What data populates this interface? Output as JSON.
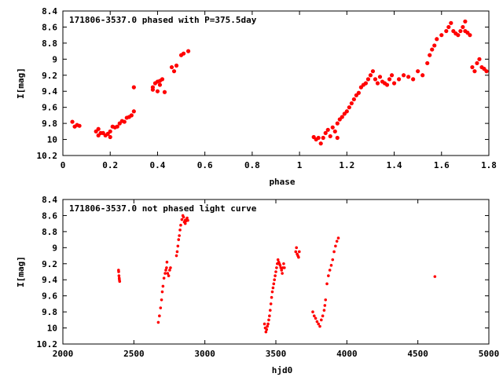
{
  "chart_data": [
    {
      "type": "scatter",
      "title": "171806-3537.0 phased with P=375.5day",
      "xlabel": "phase",
      "ylabel": "I[mag]",
      "xlim": [
        0,
        1.8
      ],
      "ylim": [
        10.2,
        8.4
      ],
      "y_inverted": true,
      "grid": false,
      "x_ticks": [
        "0",
        "0.2",
        "0.4",
        "0.6",
        "0.8",
        "1",
        "1.2",
        "1.4",
        "1.6",
        "1.8"
      ],
      "y_ticks": [
        "8.4",
        "8.6",
        "8.8",
        "9",
        "9.2",
        "9.4",
        "9.6",
        "9.8",
        "10",
        "10.2"
      ],
      "marker_color": "#ff0000",
      "series": [
        {
          "x": [
            0.04,
            0.05,
            0.06,
            0.07,
            0.14,
            0.15,
            0.15,
            0.16,
            0.17,
            0.18,
            0.19,
            0.2,
            0.2,
            0.21,
            0.22,
            0.23,
            0.24,
            0.25,
            0.26,
            0.27,
            0.28,
            0.29,
            0.3,
            0.3,
            0.38,
            0.38,
            0.39,
            0.4,
            0.4,
            0.41,
            0.41,
            0.42,
            0.43,
            0.46,
            0.47,
            0.48,
            0.5,
            0.51,
            0.53,
            1.06,
            1.07,
            1.08,
            1.09,
            1.1,
            1.11,
            1.12,
            1.13,
            1.14,
            1.15,
            1.16,
            1.16,
            1.17,
            1.18,
            1.19,
            1.2,
            1.21,
            1.22,
            1.23,
            1.24,
            1.25,
            1.26,
            1.27,
            1.28,
            1.29,
            1.3,
            1.31,
            1.32,
            1.33,
            1.34,
            1.35,
            1.36,
            1.37,
            1.38,
            1.39,
            1.4,
            1.42,
            1.44,
            1.46,
            1.48,
            1.5,
            1.52,
            1.54,
            1.55,
            1.56,
            1.57,
            1.58,
            1.6,
            1.62,
            1.63,
            1.64,
            1.65,
            1.66,
            1.67,
            1.68,
            1.69,
            1.7,
            1.7,
            1.71,
            1.72,
            1.73,
            1.74,
            1.75,
            1.76,
            1.77,
            1.78,
            1.79
          ],
          "y": [
            9.78,
            9.84,
            9.82,
            9.83,
            9.9,
            9.87,
            9.95,
            9.92,
            9.92,
            9.95,
            9.93,
            9.97,
            9.9,
            9.84,
            9.85,
            9.84,
            9.8,
            9.77,
            9.78,
            9.73,
            9.72,
            9.7,
            9.65,
            9.35,
            9.38,
            9.35,
            9.3,
            9.28,
            9.4,
            9.27,
            9.32,
            9.25,
            9.41,
            9.1,
            9.15,
            9.08,
            8.95,
            8.93,
            8.9,
            9.97,
            10.0,
            9.98,
            10.05,
            9.98,
            9.92,
            9.88,
            9.96,
            9.85,
            9.9,
            9.8,
            9.98,
            9.75,
            9.72,
            9.68,
            9.65,
            9.6,
            9.55,
            9.5,
            9.45,
            9.42,
            9.35,
            9.32,
            9.3,
            9.25,
            9.2,
            9.15,
            9.25,
            9.3,
            9.22,
            9.28,
            9.3,
            9.32,
            9.25,
            9.2,
            9.3,
            9.25,
            9.2,
            9.22,
            9.25,
            9.15,
            9.2,
            9.05,
            8.95,
            8.88,
            8.83,
            8.75,
            8.7,
            8.65,
            8.6,
            8.55,
            8.65,
            8.68,
            8.7,
            8.65,
            8.6,
            8.53,
            8.65,
            8.67,
            8.7,
            9.1,
            9.15,
            9.05,
            9.0,
            9.1,
            9.12,
            9.15
          ]
        }
      ]
    },
    {
      "type": "scatter",
      "title": "171806-3537.0 not phased light curve",
      "xlabel": "hjd0",
      "ylabel": "I[mag]",
      "xlim": [
        2000,
        5000
      ],
      "ylim": [
        10.2,
        8.4
      ],
      "y_inverted": true,
      "grid": false,
      "x_ticks": [
        "2000",
        "2500",
        "3000",
        "3500",
        "4000",
        "4500",
        "5000"
      ],
      "y_ticks": [
        "8.4",
        "8.6",
        "8.8",
        "9",
        "9.2",
        "9.4",
        "9.6",
        "9.8",
        "10",
        "10.2"
      ],
      "marker_color": "#ff0000",
      "series": [
        {
          "x": [
            2392,
            2393,
            2395,
            2397,
            2398,
            2400,
            2672,
            2680,
            2688,
            2695,
            2700,
            2705,
            2712,
            2720,
            2725,
            2730,
            2733,
            2738,
            2745,
            2752,
            2758,
            2800,
            2805,
            2810,
            2815,
            2820,
            2825,
            2830,
            2838,
            2845,
            2850,
            2855,
            2860,
            2862,
            2865,
            2870,
            2875,
            2880,
            3420,
            3425,
            3430,
            3435,
            3440,
            3445,
            3450,
            3455,
            3460,
            3465,
            3470,
            3475,
            3480,
            3485,
            3490,
            3495,
            3500,
            3505,
            3510,
            3515,
            3520,
            3525,
            3530,
            3535,
            3540,
            3545,
            3550,
            3555,
            3560,
            3640,
            3645,
            3650,
            3655,
            3660,
            3665,
            3760,
            3770,
            3780,
            3790,
            3800,
            3810,
            3820,
            3830,
            3840,
            3845,
            3850,
            3860,
            3870,
            3880,
            3890,
            3900,
            3910,
            3920,
            3930,
            3940,
            4620
          ],
          "y": [
            9.28,
            9.3,
            9.35,
            9.38,
            9.4,
            9.42,
            9.93,
            9.85,
            9.75,
            9.65,
            9.55,
            9.48,
            9.38,
            9.32,
            9.28,
            9.25,
            9.18,
            9.32,
            9.35,
            9.28,
            9.25,
            9.1,
            9.05,
            8.98,
            8.9,
            8.85,
            8.78,
            8.72,
            8.65,
            8.6,
            8.62,
            8.68,
            8.66,
            8.7,
            8.67,
            8.65,
            8.63,
            8.66,
            9.95,
            10.0,
            10.05,
            10.02,
            9.98,
            9.95,
            9.9,
            9.85,
            9.78,
            9.7,
            9.62,
            9.55,
            9.5,
            9.45,
            9.4,
            9.35,
            9.3,
            9.25,
            9.2,
            9.15,
            9.18,
            9.2,
            9.22,
            9.25,
            9.28,
            9.32,
            9.25,
            9.2,
            9.25,
            9.05,
            9.0,
            9.08,
            9.1,
            9.12,
            9.05,
            9.8,
            9.85,
            9.88,
            9.92,
            9.95,
            9.98,
            9.9,
            9.85,
            9.78,
            9.72,
            9.65,
            9.45,
            9.35,
            9.28,
            9.22,
            9.15,
            9.05,
            8.98,
            8.92,
            8.88,
            9.36
          ]
        }
      ]
    }
  ]
}
